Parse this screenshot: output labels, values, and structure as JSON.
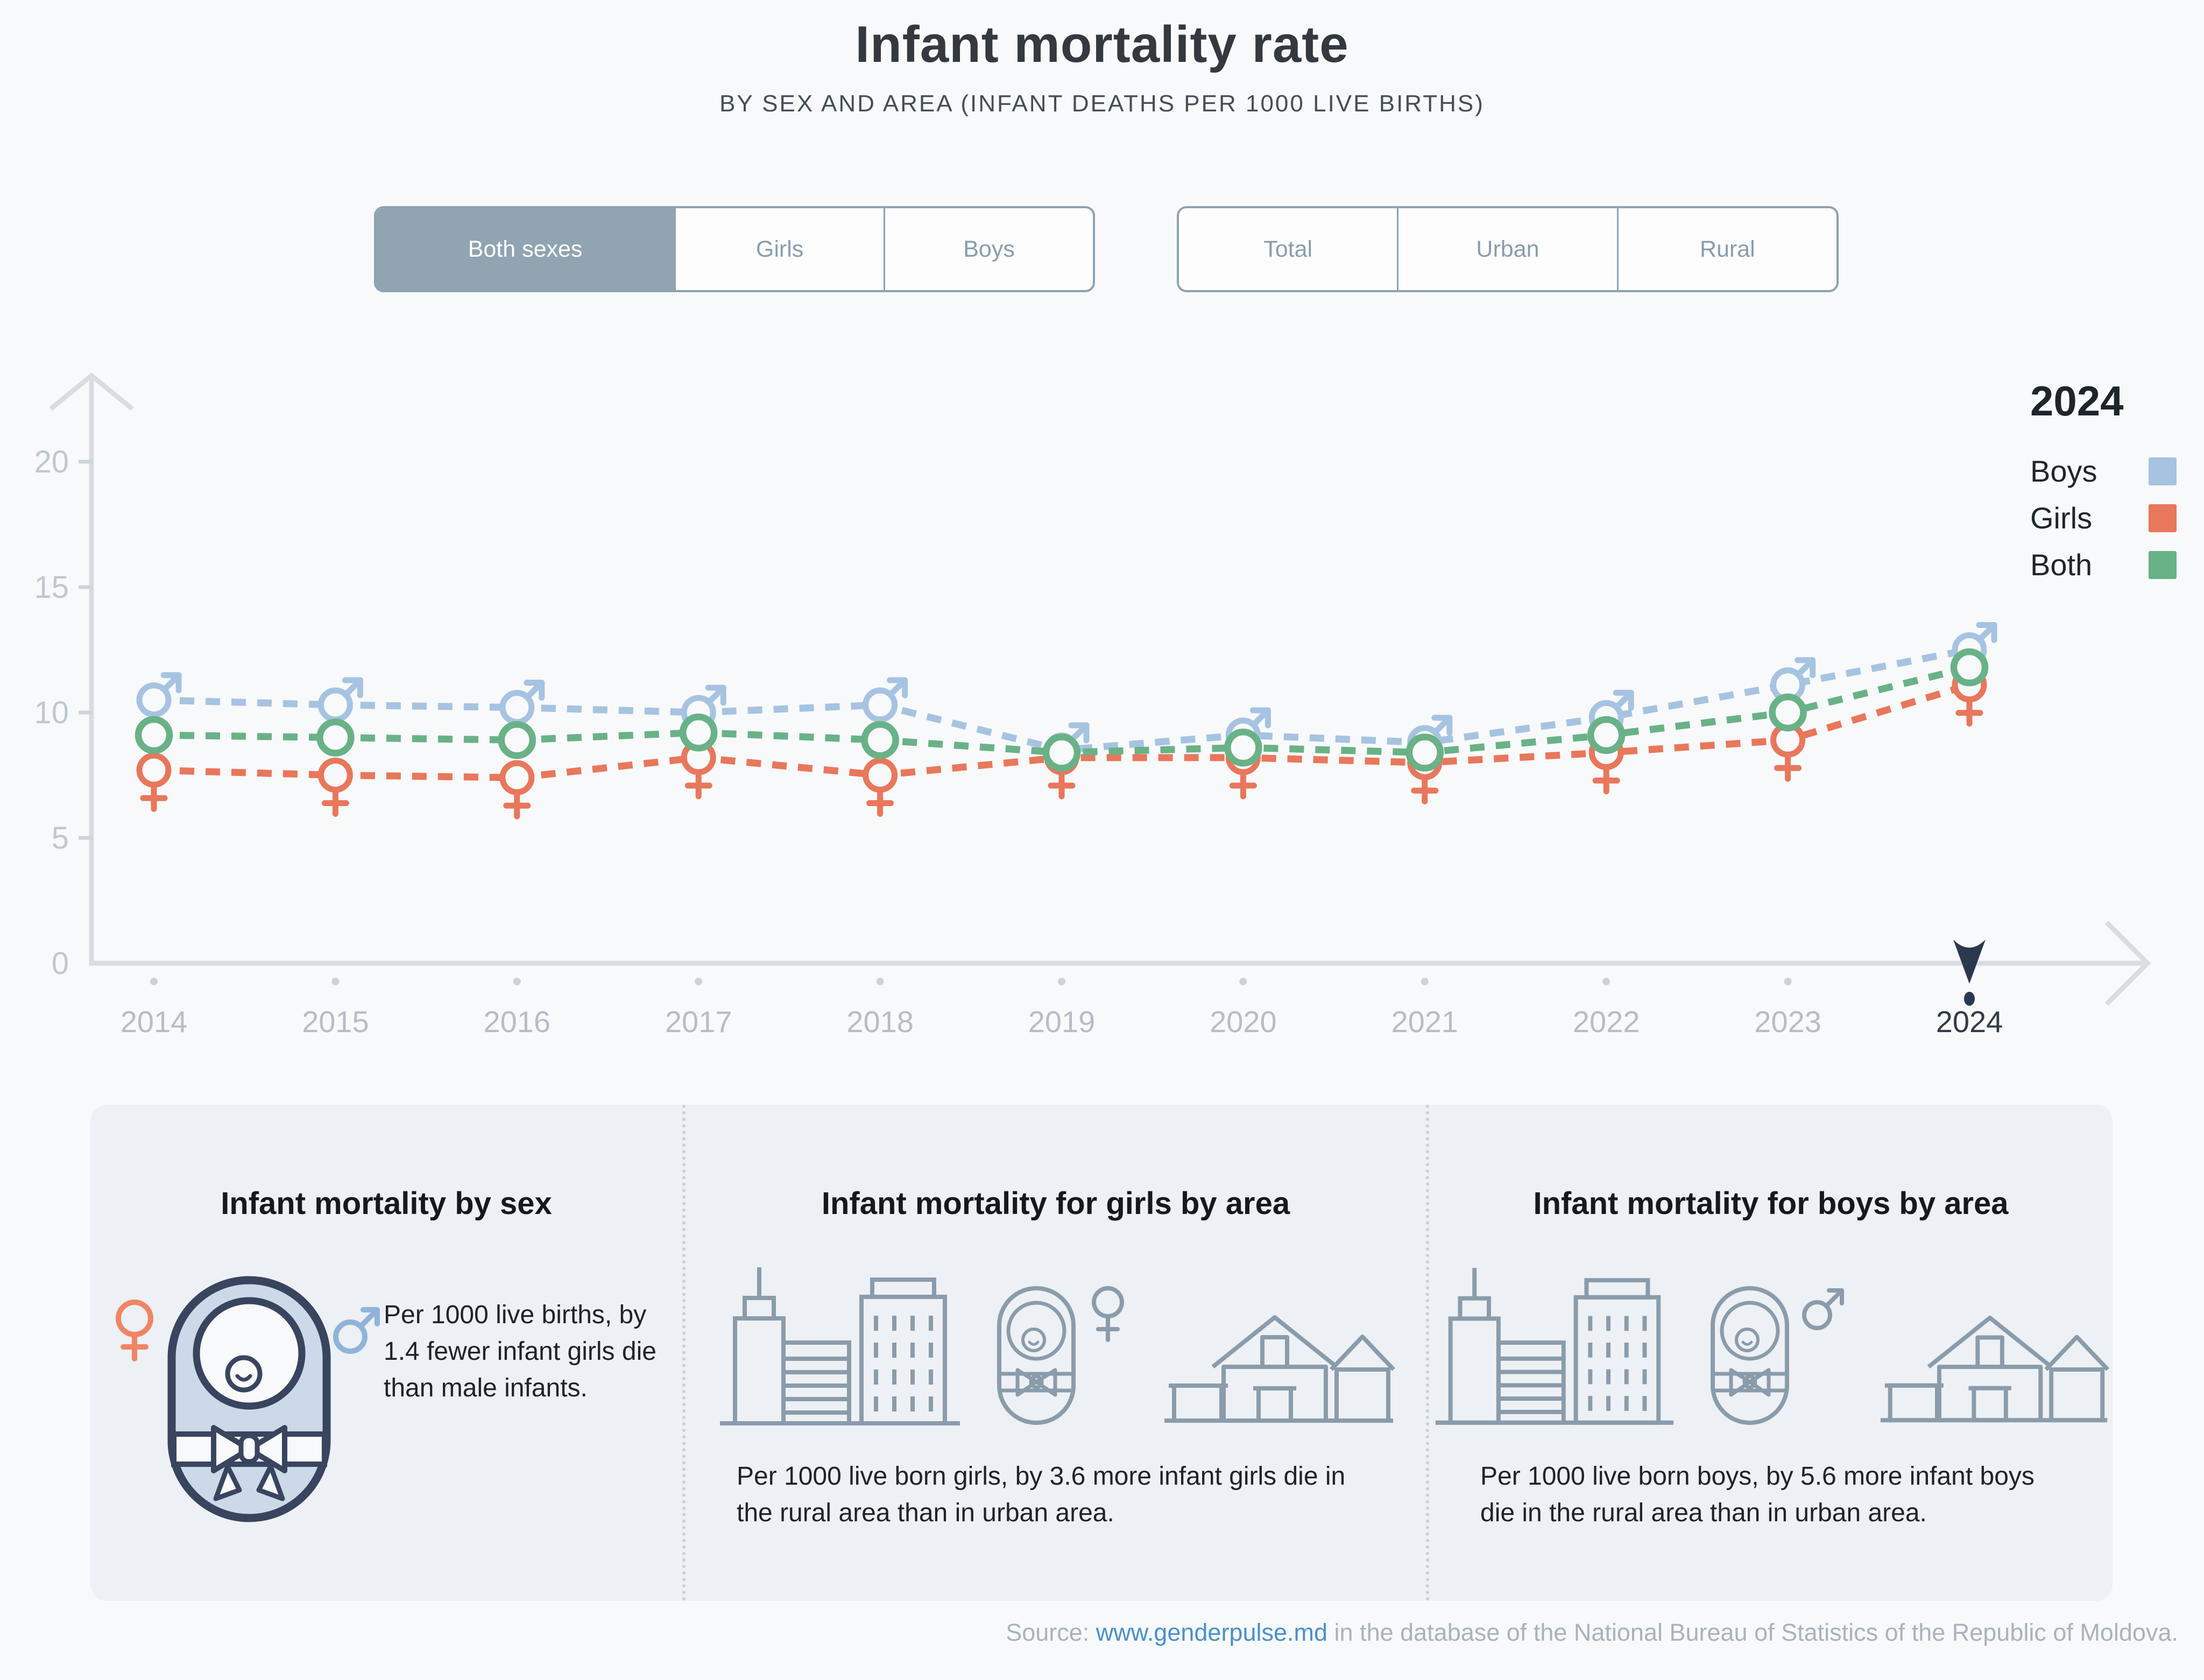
{
  "page": {
    "background": "#f8f9fa",
    "accent_navy": "#2b3850"
  },
  "header": {
    "title": "Infant mortality rate",
    "subtitle": "BY SEX AND AREA (INFANT DEATHS PER 1000 LIVE BIRTHS)"
  },
  "filters": {
    "sex": {
      "options": [
        "Both sexes",
        "Girls",
        "Boys"
      ],
      "selected": "Both sexes"
    },
    "area": {
      "options": [
        "Total",
        "Urban",
        "Rural"
      ],
      "selected": null
    }
  },
  "legend": {
    "year": "2024",
    "items": [
      {
        "label": "Boys",
        "color": "#a6c3e1"
      },
      {
        "label": "Girls",
        "color": "#e8775c"
      },
      {
        "label": "Both",
        "color": "#69b287"
      }
    ]
  },
  "chart_data": {
    "type": "line",
    "x": [
      2014,
      2015,
      2016,
      2017,
      2018,
      2019,
      2020,
      2021,
      2022,
      2023,
      2024
    ],
    "series": [
      {
        "name": "Boys",
        "color": "#a6c3e1",
        "marker": "male",
        "values": [
          10.5,
          10.3,
          10.2,
          10.0,
          10.3,
          8.5,
          9.1,
          8.8,
          9.8,
          11.1,
          12.5
        ]
      },
      {
        "name": "Girls",
        "color": "#e8775c",
        "marker": "female",
        "values": [
          7.7,
          7.5,
          7.4,
          8.2,
          7.5,
          8.2,
          8.2,
          8.0,
          8.4,
          8.9,
          11.1
        ]
      },
      {
        "name": "Both",
        "color": "#69b287",
        "marker": "circle",
        "values": [
          9.1,
          9.0,
          8.9,
          9.2,
          8.9,
          8.4,
          8.6,
          8.4,
          9.1,
          10.0,
          11.8
        ]
      }
    ],
    "title": "Infant mortality rate",
    "xlabel": "",
    "ylabel": "",
    "ylim": [
      0,
      20
    ],
    "yticks": [
      0,
      5,
      10,
      15,
      20
    ],
    "grid": false,
    "legend_position": "top-right",
    "highlight_year": 2024,
    "axis_color": "#d9dde2",
    "tick_label_color": "#c0c7ce",
    "year_label_color": "#b6bdc5",
    "highlight_year_label_color": "#333c48"
  },
  "cards": [
    {
      "title": "Infant mortality by sex",
      "text": "Per 1000 live births, by 1.4 fewer infant girls die than male infants.",
      "icons": [
        "female-icon",
        "baby-icon",
        "male-icon"
      ]
    },
    {
      "title": "Infant mortality for girls by area",
      "text": "Per 1000 live born girls, by 3.6 more infant girls die in the rural area than in urban area.",
      "icons": [
        "city-icon",
        "baby-icon",
        "female-icon",
        "house-icon"
      ]
    },
    {
      "title": "Infant mortality for boys by area",
      "text": "Per 1000 live born boys, by 5.6 more infant boys die in the rural area than in urban area.",
      "icons": [
        "city-icon",
        "baby-icon",
        "male-icon",
        "house-icon"
      ]
    }
  ],
  "source": {
    "prefix": "Source: ",
    "link_text": "www.genderpulse.md",
    "suffix": " in the database of the National Bureau of Statistics of the Republic of Moldova."
  }
}
